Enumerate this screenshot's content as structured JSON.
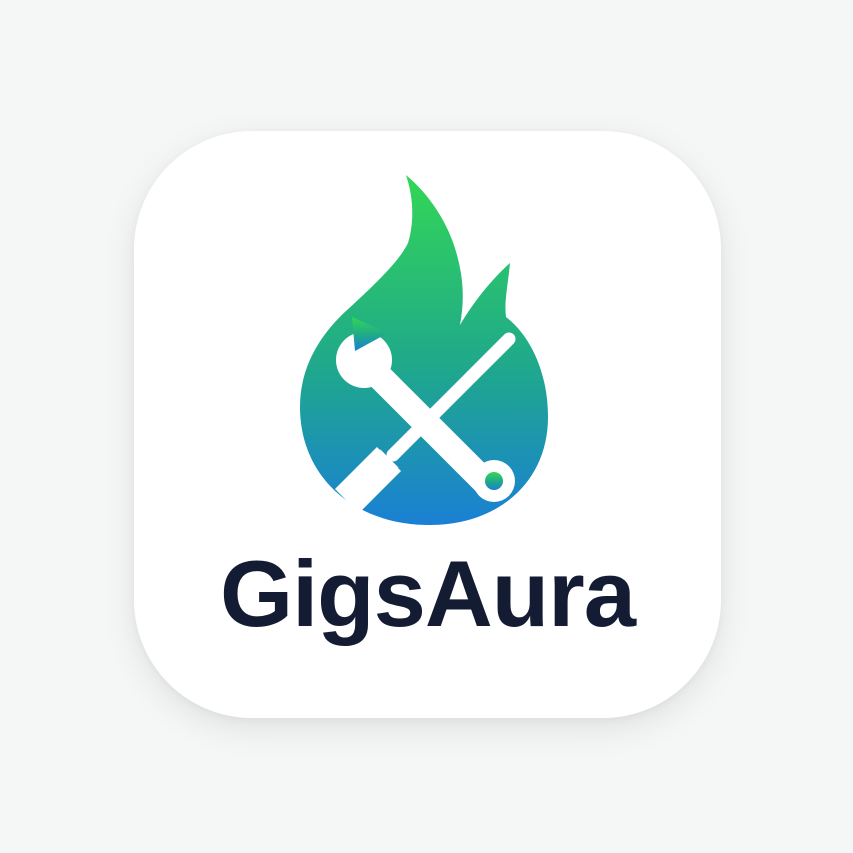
{
  "app_icon": {
    "wordmark": "GigsAura",
    "icons": [
      "flame-icon",
      "wrench-icon",
      "screwdriver-icon"
    ],
    "colors": {
      "background": "#f5f6f6",
      "tile": "#ffffff",
      "flame_gradient_top": "#33d656",
      "flame_gradient_mid": "#1fa88c",
      "flame_gradient_bottom": "#1a80d4",
      "tool_glyph": "#ffffff",
      "wordmark": "#141c33"
    }
  }
}
